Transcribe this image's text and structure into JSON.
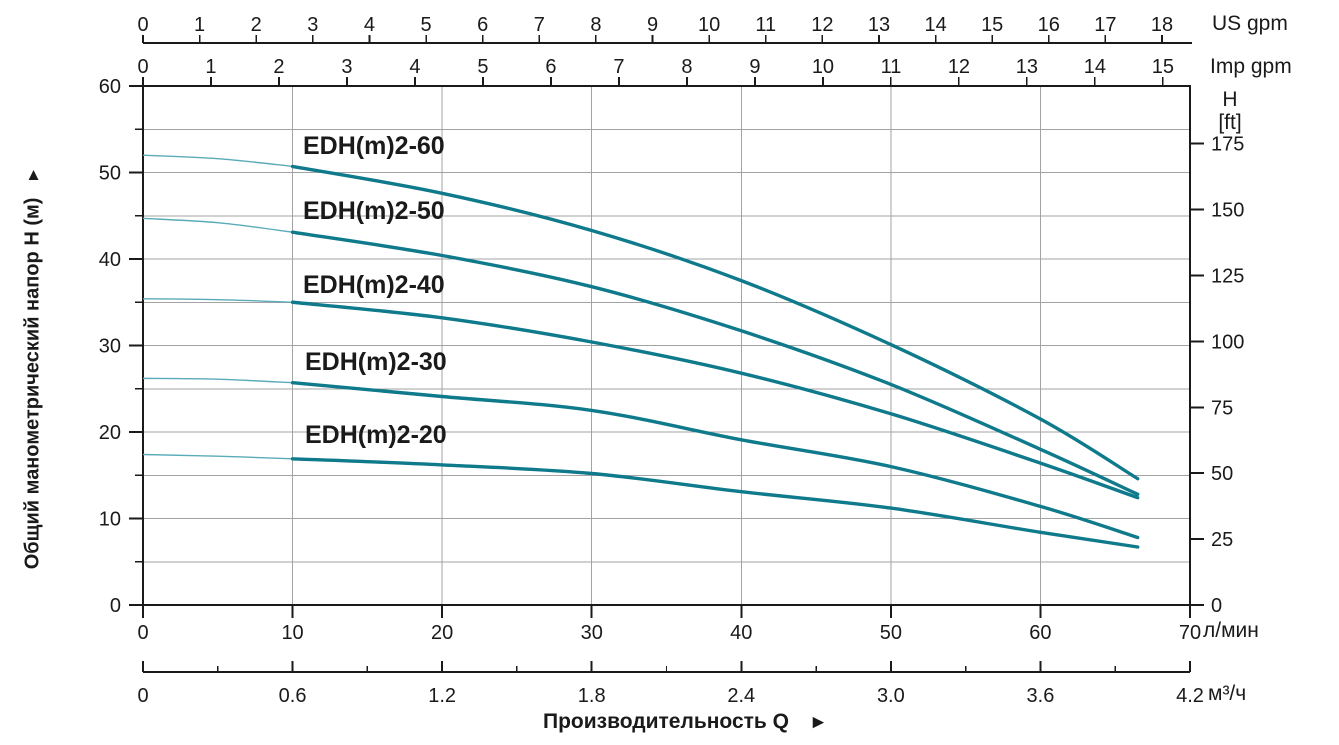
{
  "chart_data": {
    "type": "line",
    "xlabel": "Производительность Q",
    "xlabel_arrow": "►",
    "x_axis_top_us": {
      "unit": "US gpm",
      "ticks": [
        0,
        1,
        2,
        3,
        4,
        5,
        6,
        7,
        8,
        9,
        10,
        11,
        12,
        13,
        14,
        15,
        16,
        17,
        18
      ],
      "lpm_per_unit": 3.785
    },
    "x_axis_top_imp": {
      "unit": "Imp gpm",
      "ticks": [
        0,
        1,
        2,
        3,
        4,
        5,
        6,
        7,
        8,
        9,
        10,
        11,
        12,
        13,
        14,
        15
      ],
      "lpm_per_unit": 4.546
    },
    "x_axis_bottom_lpm": {
      "unit": "л/мин",
      "ticks": [
        0,
        10,
        20,
        30,
        40,
        50,
        60,
        70
      ],
      "range": [
        0,
        70
      ]
    },
    "x_axis_bottom_m3h": {
      "unit": "м³/ч",
      "ticks": [
        "0",
        "0.6",
        "1.2",
        "1.8",
        "2.4",
        "3.0",
        "3.6",
        "4.2"
      ],
      "tick_values": [
        0,
        0.6,
        1.2,
        1.8,
        2.4,
        3.0,
        3.6,
        4.2
      ],
      "minor_step": 0.3,
      "range": [
        0,
        4.2
      ]
    },
    "y_axis_left_m": {
      "label": "Общий манометрический напор H (м)",
      "label_arrow": "▲",
      "ticks": [
        0,
        10,
        20,
        30,
        40,
        50,
        60
      ],
      "minor_step": 5,
      "range": [
        0,
        60
      ]
    },
    "y_axis_right_ft": {
      "unit_line1": "H",
      "unit_line2": "[ft]",
      "ticks": [
        0,
        25,
        50,
        75,
        100,
        125,
        150,
        175
      ],
      "m_per_ft": 0.3048
    },
    "grid": true,
    "thin_segment_until_lpm": 10,
    "series": [
      {
        "name": "EDH(m)2-60",
        "points_lpm_m": [
          [
            0,
            52.0
          ],
          [
            5,
            51.6
          ],
          [
            10,
            50.7
          ],
          [
            20,
            47.6
          ],
          [
            30,
            43.3
          ],
          [
            40,
            37.5
          ],
          [
            50,
            30.1
          ],
          [
            60,
            21.5
          ],
          [
            66.5,
            14.6
          ]
        ]
      },
      {
        "name": "EDH(m)2-50",
        "points_lpm_m": [
          [
            0,
            44.7
          ],
          [
            5,
            44.2
          ],
          [
            10,
            43.1
          ],
          [
            20,
            40.4
          ],
          [
            30,
            36.8
          ],
          [
            40,
            31.7
          ],
          [
            50,
            25.5
          ],
          [
            60,
            18.0
          ],
          [
            66.5,
            12.8
          ]
        ]
      },
      {
        "name": "EDH(m)2-40",
        "points_lpm_m": [
          [
            0,
            35.4
          ],
          [
            5,
            35.3
          ],
          [
            10,
            35.0
          ],
          [
            20,
            33.2
          ],
          [
            30,
            30.4
          ],
          [
            40,
            26.8
          ],
          [
            50,
            22.1
          ],
          [
            60,
            16.4
          ],
          [
            66.5,
            12.4
          ]
        ]
      },
      {
        "name": "EDH(m)2-30",
        "points_lpm_m": [
          [
            0,
            26.2
          ],
          [
            5,
            26.1
          ],
          [
            10,
            25.7
          ],
          [
            20,
            24.1
          ],
          [
            30,
            22.5
          ],
          [
            40,
            19.1
          ],
          [
            50,
            16.0
          ],
          [
            60,
            11.4
          ],
          [
            66.5,
            7.8
          ]
        ]
      },
      {
        "name": "EDH(m)2-20",
        "points_lpm_m": [
          [
            0,
            17.4
          ],
          [
            5,
            17.2
          ],
          [
            10,
            16.9
          ],
          [
            20,
            16.2
          ],
          [
            30,
            15.2
          ],
          [
            40,
            13.1
          ],
          [
            50,
            11.2
          ],
          [
            60,
            8.4
          ],
          [
            66.5,
            6.7
          ]
        ]
      }
    ],
    "colors": {
      "curve": "#0e7a8b",
      "curve_thin": "#5aabb8",
      "grid": "#a3a3a3",
      "axis": "#1a1a1a",
      "background": "#ffffff"
    }
  }
}
